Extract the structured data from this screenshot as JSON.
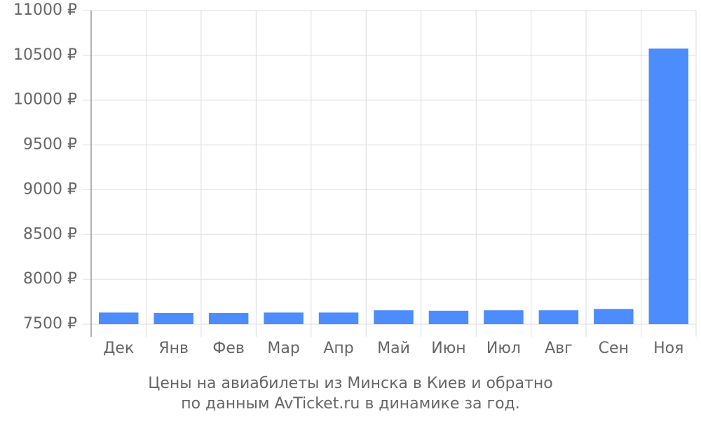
{
  "chart_data": {
    "type": "bar",
    "caption": [
      "Цены на авиабилеты из Минска в Киев и обратно",
      "по данным AvTicket.ru в динамике за год."
    ],
    "categories": [
      "Дек",
      "Янв",
      "Фев",
      "Мар",
      "Апр",
      "Май",
      "Июн",
      "Июл",
      "Авг",
      "Сен",
      "Ноя"
    ],
    "values": [
      7630,
      7625,
      7625,
      7630,
      7630,
      7655,
      7650,
      7655,
      7655,
      7670,
      10575
    ],
    "color": "#4d8cfd",
    "ylim": [
      7500,
      11000
    ],
    "yticks": [
      {
        "value": 7500,
        "label": "7500 ₽"
      },
      {
        "value": 8000,
        "label": "8000 ₽"
      },
      {
        "value": 8500,
        "label": "8500 ₽"
      },
      {
        "value": 9000,
        "label": "9000 ₽"
      },
      {
        "value": 9500,
        "label": "9500 ₽"
      },
      {
        "value": 10000,
        "label": "10000 ₽"
      },
      {
        "value": 10500,
        "label": "10500 ₽"
      },
      {
        "value": 11000,
        "label": "11000 ₽"
      }
    ],
    "grid": true
  }
}
